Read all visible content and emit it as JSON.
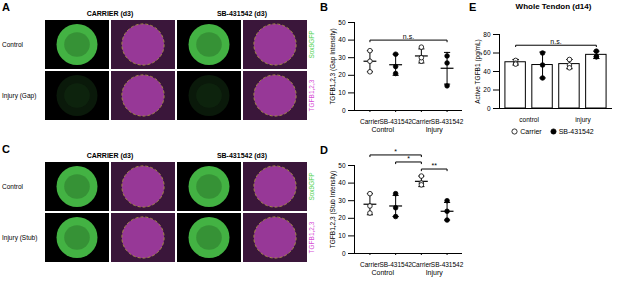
{
  "image_panels": [
    {
      "panel": "A",
      "columns": [
        "CARRIER (d3)",
        "SB-431542 (d3)"
      ],
      "rows": [
        "Control",
        "Injury (Gap)"
      ],
      "channels": [
        {
          "name": "Sox9GFP",
          "color": "#4fd14f"
        },
        {
          "name": "TGFB1,2,3",
          "color": "#d64fd6"
        }
      ]
    },
    {
      "panel": "C",
      "columns": [
        "CARRIER (d3)",
        "SB-431542 (d3)"
      ],
      "rows": [
        "Control",
        "Injury (Stub)"
      ],
      "channels": [
        {
          "name": "Sox9GFP",
          "color": "#4fd14f"
        },
        {
          "name": "TGFB1,2,3",
          "color": "#d64fd6"
        }
      ]
    }
  ],
  "chart_data": [
    {
      "panel": "B",
      "type": "scatter",
      "ylabel": "TGFB1,2,3 (Gap Intensity)",
      "categories": [
        "Control",
        "Injury"
      ],
      "series": [
        {
          "name": "Carrier",
          "color": "#ffffff",
          "values": [
            28,
            31
          ],
          "errors": [
            6,
            4
          ],
          "points": [
            [
              34,
              22,
              28
            ],
            [
              36,
              28,
              30
            ]
          ]
        },
        {
          "name": "SB-431542",
          "color": "#000000",
          "values": [
            26,
            24
          ],
          "errors": [
            6,
            9
          ],
          "points": [
            [
              32,
              25,
              21
            ],
            [
              31,
              27,
              14
            ]
          ]
        }
      ],
      "ylim": [
        0,
        50
      ],
      "yticks": [
        0,
        10,
        20,
        30,
        40,
        50
      ],
      "annotations": [
        {
          "text": "n.s.",
          "between": [
            0,
            3
          ]
        }
      ]
    },
    {
      "panel": "D",
      "type": "scatter",
      "ylabel": "TGFB1,2,3 (Stub Intensity)",
      "categories": [
        "Control",
        "Injury"
      ],
      "series": [
        {
          "name": "Carrier",
          "color": "#ffffff",
          "values": [
            28,
            41
          ],
          "errors": [
            6,
            3
          ],
          "points": [
            [
              34,
              23,
              27
            ],
            [
              44,
              40,
              39
            ]
          ]
        },
        {
          "name": "SB-431542",
          "color": "#000000",
          "values": [
            27,
            24
          ],
          "errors": [
            6,
            5
          ],
          "points": [
            [
              34,
              21,
              26
            ],
            [
              30,
              24,
              19
            ]
          ]
        }
      ],
      "ylim": [
        0,
        50
      ],
      "yticks": [
        0,
        10,
        20,
        30,
        40,
        50
      ],
      "annotations": [
        {
          "text": "*",
          "between": [
            0,
            2
          ]
        },
        {
          "text": "*",
          "between": [
            1,
            2
          ]
        },
        {
          "text": "**",
          "between": [
            2,
            3
          ]
        }
      ]
    },
    {
      "panel": "E",
      "type": "bar",
      "title": "Whole Tendon (d14)",
      "ylabel": "Active TGFB1 (pg/mL)",
      "categories": [
        "control",
        "injury"
      ],
      "series": [
        {
          "name": "Carrier",
          "color": "#ffffff",
          "values": [
            50,
            48
          ],
          "errors": [
            3,
            5
          ],
          "points": [
            [
              52,
              49,
              48
            ],
            [
              53,
              47,
              44
            ]
          ]
        },
        {
          "name": "SB-431542",
          "color": "#000000",
          "values": [
            47,
            58
          ],
          "errors": [
            14,
            4
          ],
          "points": [
            [
              60,
              47,
              33
            ],
            [
              62,
              56,
              56
            ]
          ]
        }
      ],
      "ylim": [
        0,
        80
      ],
      "yticks": [
        0,
        20,
        40,
        60,
        80
      ],
      "legend": "bottom",
      "annotations": [
        {
          "text": "n.s.",
          "between": [
            0,
            3
          ]
        }
      ]
    }
  ]
}
